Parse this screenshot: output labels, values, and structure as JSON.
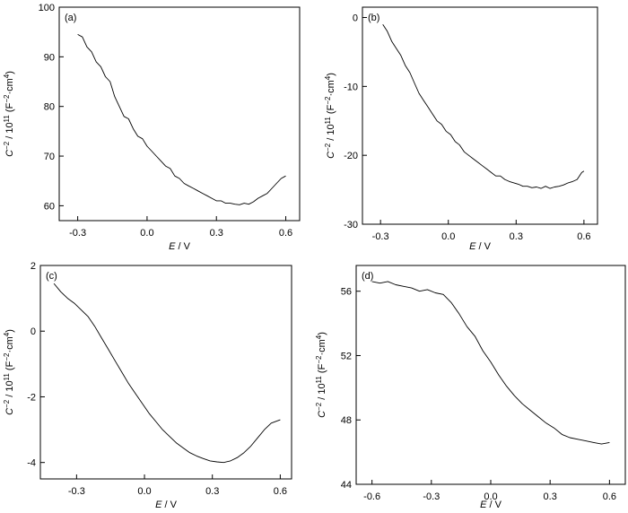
{
  "chart_data": [
    {
      "type": "line",
      "panel_label": "(a)",
      "xlabel_var": "E",
      "xlabel_unit": " / V",
      "ylabel_parts": [
        "C",
        "−2",
        " / 10",
        "11",
        " (F",
        "−2",
        "·cm",
        "4",
        ")"
      ],
      "xlim": [
        -0.38,
        0.66
      ],
      "ylim": [
        57,
        100
      ],
      "xticks": [
        -0.3,
        0.0,
        0.3,
        0.6
      ],
      "xtick_labels": [
        "-0.3",
        "0.0",
        "0.3",
        "0.6"
      ],
      "yticks": [
        60,
        70,
        80,
        90,
        100
      ],
      "ytick_labels": [
        "60",
        "70",
        "80",
        "90",
        "100"
      ],
      "series": [
        {
          "x": [
            -0.3,
            -0.28,
            -0.26,
            -0.24,
            -0.22,
            -0.2,
            -0.18,
            -0.16,
            -0.14,
            -0.12,
            -0.1,
            -0.08,
            -0.06,
            -0.04,
            -0.02,
            0.0,
            0.02,
            0.04,
            0.06,
            0.08,
            0.1,
            0.12,
            0.14,
            0.16,
            0.18,
            0.2,
            0.22,
            0.24,
            0.26,
            0.28,
            0.3,
            0.32,
            0.34,
            0.36,
            0.38,
            0.4,
            0.42,
            0.44,
            0.46,
            0.48,
            0.5,
            0.52,
            0.54,
            0.56,
            0.58,
            0.6
          ],
          "y": [
            94.5,
            94,
            92,
            91,
            89,
            88,
            86,
            85,
            82,
            80,
            78,
            77.5,
            75.5,
            74,
            73.5,
            72,
            71,
            70,
            69,
            68,
            67.5,
            66,
            65.5,
            64.5,
            64,
            63.5,
            63,
            62.5,
            62,
            61.5,
            61,
            61,
            60.5,
            60.5,
            60.3,
            60.2,
            60.5,
            60.3,
            60.8,
            61.5,
            62,
            62.5,
            63.5,
            64.5,
            65.5,
            66
          ]
        }
      ]
    },
    {
      "type": "line",
      "panel_label": "(b)",
      "xlabel_var": "E",
      "xlabel_unit": " / V",
      "ylabel_parts": [
        "C",
        "−2",
        " / 10",
        "11",
        " (F",
        "−2",
        "·cm",
        "4",
        ")"
      ],
      "xlim": [
        -0.38,
        0.66
      ],
      "ylim": [
        -30,
        1.5
      ],
      "xticks": [
        -0.3,
        0.0,
        0.3,
        0.6
      ],
      "xtick_labels": [
        "-0.3",
        "0.0",
        "0.3",
        "0.6"
      ],
      "yticks": [
        -30,
        -20,
        -10,
        0
      ],
      "ytick_labels": [
        "-30",
        "-20",
        "-10",
        "0"
      ],
      "series": [
        {
          "x": [
            -0.29,
            -0.27,
            -0.25,
            -0.23,
            -0.21,
            -0.19,
            -0.17,
            -0.15,
            -0.13,
            -0.11,
            -0.09,
            -0.07,
            -0.05,
            -0.03,
            -0.01,
            0.01,
            0.03,
            0.05,
            0.07,
            0.09,
            0.11,
            0.13,
            0.15,
            0.17,
            0.19,
            0.21,
            0.23,
            0.25,
            0.27,
            0.29,
            0.31,
            0.33,
            0.35,
            0.37,
            0.39,
            0.41,
            0.43,
            0.45,
            0.47,
            0.49,
            0.51,
            0.53,
            0.55,
            0.57,
            0.59,
            0.6
          ],
          "y": [
            -1,
            -2,
            -3.5,
            -4.5,
            -5.5,
            -7,
            -8,
            -9.5,
            -11,
            -12,
            -13,
            -14,
            -15,
            -15.5,
            -16.5,
            -17,
            -18,
            -18.5,
            -19.5,
            -20,
            -20.5,
            -21,
            -21.5,
            -22,
            -22.5,
            -23,
            -23,
            -23.5,
            -23.8,
            -24,
            -24.2,
            -24.5,
            -24.5,
            -24.7,
            -24.6,
            -24.8,
            -24.5,
            -24.8,
            -24.6,
            -24.5,
            -24.3,
            -24,
            -23.8,
            -23.5,
            -22.5,
            -22.3
          ]
        }
      ]
    },
    {
      "type": "line",
      "panel_label": "(c)",
      "xlabel_var": "E",
      "xlabel_unit": " / V",
      "ylabel_parts": [
        "C",
        "−2",
        " / 10",
        "11",
        " (F",
        "−2",
        "·cm",
        "4",
        ")"
      ],
      "xlim": [
        -0.46,
        0.65
      ],
      "ylim": [
        -4.5,
        2
      ],
      "xticks": [
        -0.3,
        0.0,
        0.3,
        0.6
      ],
      "xtick_labels": [
        "-0.3",
        "0.0",
        "0.3",
        "0.6"
      ],
      "yticks": [
        -4,
        -2,
        0,
        2
      ],
      "ytick_labels": [
        "-4",
        "-2",
        "0",
        "2"
      ],
      "series": [
        {
          "x": [
            -0.4,
            -0.37,
            -0.34,
            -0.31,
            -0.28,
            -0.25,
            -0.22,
            -0.19,
            -0.16,
            -0.13,
            -0.1,
            -0.07,
            -0.04,
            -0.01,
            0.02,
            0.05,
            0.08,
            0.11,
            0.14,
            0.17,
            0.2,
            0.23,
            0.26,
            0.29,
            0.32,
            0.35,
            0.38,
            0.41,
            0.44,
            0.47,
            0.5,
            0.53,
            0.56,
            0.58,
            0.6
          ],
          "y": [
            1.45,
            1.2,
            1.0,
            0.85,
            0.65,
            0.45,
            0.15,
            -0.2,
            -0.55,
            -0.9,
            -1.25,
            -1.6,
            -1.9,
            -2.2,
            -2.5,
            -2.75,
            -3.0,
            -3.2,
            -3.4,
            -3.55,
            -3.7,
            -3.8,
            -3.88,
            -3.95,
            -3.98,
            -4.0,
            -3.95,
            -3.85,
            -3.7,
            -3.5,
            -3.25,
            -3.0,
            -2.8,
            -2.75,
            -2.7
          ]
        }
      ]
    },
    {
      "type": "line",
      "panel_label": "(d)",
      "xlabel_var": "E",
      "xlabel_unit": " / V",
      "ylabel_parts": [
        "C",
        "−2",
        " / 10",
        "11",
        " (F",
        "−2",
        "·cm",
        "4",
        ")"
      ],
      "xlim": [
        -0.68,
        0.68
      ],
      "ylim": [
        44,
        57.6
      ],
      "xticks": [
        -0.6,
        -0.3,
        0.0,
        0.3,
        0.6
      ],
      "xtick_labels": [
        "-0.6",
        "-0.3",
        "0.0",
        "0.3",
        "0.6"
      ],
      "yticks": [
        44,
        48,
        52,
        56
      ],
      "ytick_labels": [
        "44",
        "48",
        "52",
        "56"
      ],
      "series": [
        {
          "x": [
            -0.6,
            -0.56,
            -0.52,
            -0.48,
            -0.44,
            -0.4,
            -0.36,
            -0.32,
            -0.28,
            -0.24,
            -0.2,
            -0.16,
            -0.12,
            -0.08,
            -0.04,
            0.0,
            0.04,
            0.08,
            0.12,
            0.16,
            0.2,
            0.24,
            0.28,
            0.32,
            0.36,
            0.4,
            0.44,
            0.48,
            0.52,
            0.56,
            0.6
          ],
          "y": [
            56.6,
            56.5,
            56.6,
            56.4,
            56.3,
            56.2,
            56.0,
            56.1,
            55.9,
            55.8,
            55.3,
            54.6,
            53.8,
            53.2,
            52.3,
            51.6,
            50.8,
            50.1,
            49.5,
            49.0,
            48.6,
            48.2,
            47.8,
            47.5,
            47.1,
            46.9,
            46.8,
            46.7,
            46.6,
            46.5,
            46.6
          ]
        }
      ]
    }
  ]
}
